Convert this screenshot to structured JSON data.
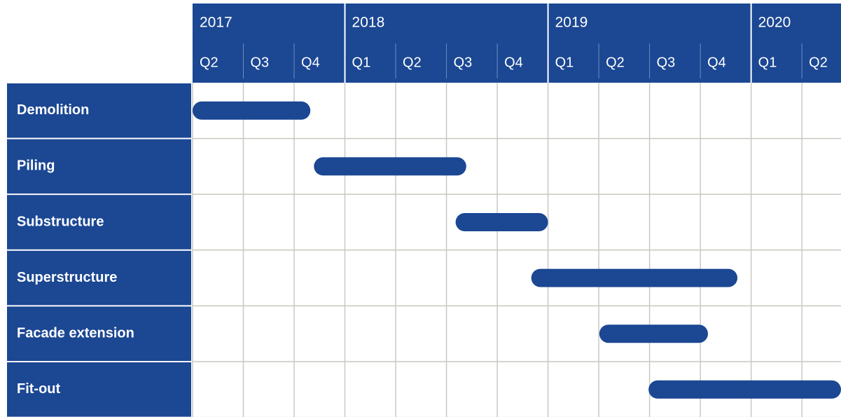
{
  "chart_data": {
    "type": "gantt",
    "year_ticks": [
      {
        "value": 0,
        "label": "2017"
      },
      {
        "value": 3,
        "label": "2018"
      },
      {
        "value": 7,
        "label": "2019"
      },
      {
        "value": 11,
        "label": "2020"
      }
    ],
    "categories": [
      "Q2",
      "Q3",
      "Q4",
      "Q1",
      "Q2",
      "Q3",
      "Q4",
      "Q1",
      "Q2",
      "Q3",
      "Q4",
      "Q1",
      "Q2"
    ],
    "xlim": [
      0,
      12.77
    ],
    "color": "#1b4793",
    "grid": true,
    "tasks": [
      {
        "name": "Demolition",
        "start": 0,
        "end": 2.32
      },
      {
        "name": "Piling",
        "start": 2.39,
        "end": 5.39
      },
      {
        "name": "Substructure",
        "start": 5.18,
        "end": 7.0
      },
      {
        "name": "Superstructure",
        "start": 6.67,
        "end": 10.73
      },
      {
        "name": "Facade extension",
        "start": 8.01,
        "end": 10.15
      },
      {
        "name": "Fit-out",
        "start": 8.98,
        "end": 12.77
      }
    ]
  }
}
